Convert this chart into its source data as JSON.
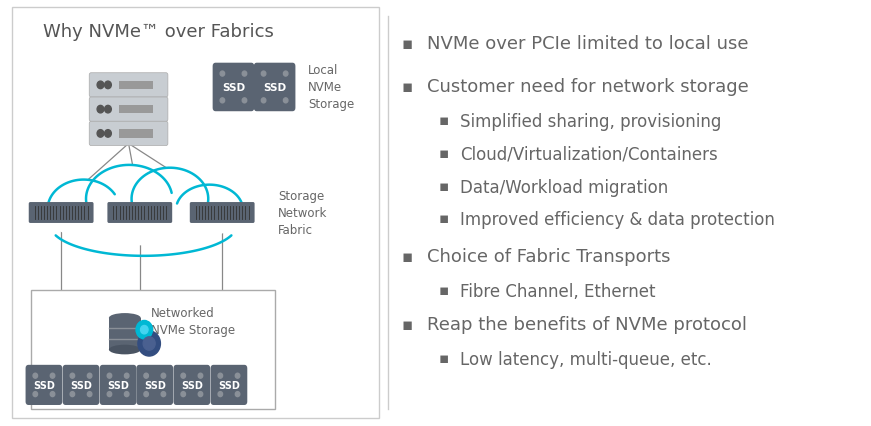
{
  "title": "Why NVMe™ over Fabrics",
  "title_color": "#555555",
  "background_color": "#ffffff",
  "left_panel_border": "#cccccc",
  "cloud_color": "#00b8d4",
  "line_color": "#888888",
  "ssd_color": "#5a6472",
  "ssd_text_color": "#ffffff",
  "server_color": "#c8cdd2",
  "server_dark": "#888888",
  "switch_color": "#5a6472",
  "db_color": "#5a6472",
  "gear1_color": "#00b8d4",
  "gear2_color": "#334d80",
  "text_color": "#666666",
  "bullet_color": "#666666",
  "bullet1_items": [
    {
      "text": "NVMe over PCIe limited to local use",
      "indent": 0,
      "size": 13
    },
    {
      "text": "Customer need for network storage",
      "indent": 0,
      "size": 13
    },
    {
      "text": "Simplified sharing, provisioning",
      "indent": 1,
      "size": 12
    },
    {
      "text": "Cloud/Virtualization/Containers",
      "indent": 1,
      "size": 12
    },
    {
      "text": "Data/Workload migration",
      "indent": 1,
      "size": 12
    },
    {
      "text": "Improved efficiency & data protection",
      "indent": 1,
      "size": 12
    },
    {
      "text": "Choice of Fabric Transports",
      "indent": 0,
      "size": 13
    },
    {
      "text": "Fibre Channel, Ethernet",
      "indent": 1,
      "size": 12
    },
    {
      "text": "Reap the benefits of NVMe protocol",
      "indent": 0,
      "size": 13
    },
    {
      "text": "Low latency, multi-queue, etc.",
      "indent": 1,
      "size": 12
    }
  ],
  "label_local": "Local\nNVMe\nStorage",
  "label_fabric": "Storage\nNetwork\nFabric",
  "label_networked": "Networked\nNVMe Storage"
}
